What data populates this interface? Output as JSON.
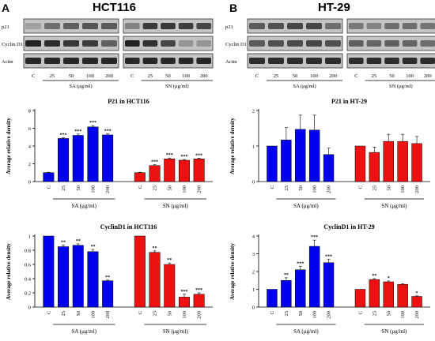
{
  "panels": {
    "A": {
      "letter": "A",
      "title": "HCT116"
    },
    "B": {
      "letter": "B",
      "title": "HT-29"
    }
  },
  "blots": {
    "rows": [
      "p21",
      "Cyclin D1",
      "Actin"
    ],
    "lanes": [
      "C",
      "25",
      "50",
      "100",
      "200",
      "C",
      "25",
      "50",
      "100",
      "200"
    ],
    "groups": [
      "SA (μg/ml)",
      "SN (μg/ml)"
    ]
  },
  "colors": {
    "SA": "#0000ee",
    "SN": "#ee1111"
  },
  "chart_data": [
    {
      "id": "p21-hct116",
      "type": "bar",
      "title": "P21 in HCT116",
      "ylabel": "Average relative density",
      "ylim": [
        0,
        8
      ],
      "yticks": [
        0,
        2,
        4,
        6,
        8
      ],
      "categories": [
        "C",
        "25",
        "50",
        "100",
        "200"
      ],
      "groups": [
        "SA (μg/ml)",
        "SN (μg/ml)"
      ],
      "series": [
        {
          "values": [
            1.0,
            4.85,
            5.2,
            6.15,
            5.25
          ],
          "errors": [
            0.05,
            0.1,
            0.15,
            0.15,
            0.15
          ],
          "annotations": [
            "",
            "***",
            "***",
            "***",
            "***"
          ]
        },
        {
          "values": [
            1.0,
            1.8,
            2.55,
            2.4,
            2.55
          ],
          "errors": [
            0.05,
            0.1,
            0.1,
            0.08,
            0.08
          ],
          "annotations": [
            "",
            "***",
            "***",
            "***",
            "***"
          ]
        }
      ]
    },
    {
      "id": "p21-ht29",
      "type": "bar",
      "title": "P21 in HT-29",
      "ylabel": "Average relative density",
      "ylim": [
        0,
        2
      ],
      "yticks": [
        0,
        1,
        2
      ],
      "categories": [
        "C",
        "25",
        "50",
        "100",
        "200"
      ],
      "groups": [
        "SA (μg/ml)",
        "SN (μg/ml)"
      ],
      "series": [
        {
          "values": [
            1.0,
            1.17,
            1.47,
            1.45,
            0.76
          ],
          "errors": [
            0.0,
            0.35,
            0.4,
            0.42,
            0.18
          ],
          "annotations": [
            "",
            "",
            "",
            "",
            ""
          ]
        },
        {
          "values": [
            1.0,
            0.82,
            1.13,
            1.13,
            1.07
          ],
          "errors": [
            0.0,
            0.15,
            0.2,
            0.2,
            0.2
          ],
          "annotations": [
            "",
            "",
            "",
            "",
            ""
          ]
        }
      ]
    },
    {
      "id": "cyclind1-hct116",
      "type": "bar",
      "title": "CyclinD1 in HCT116",
      "ylabel": "Average relative density",
      "ylim": [
        0,
        1.0
      ],
      "yticks": [
        0,
        0.2,
        0.4,
        0.6,
        0.8,
        1.0
      ],
      "categories": [
        "C",
        "25",
        "50",
        "100",
        "200"
      ],
      "groups": [
        "SA (μg/ml)",
        "SN (μg/ml)"
      ],
      "series": [
        {
          "values": [
            1.0,
            0.85,
            0.87,
            0.78,
            0.37
          ],
          "errors": [
            0.0,
            0.02,
            0.02,
            0.03,
            0.01
          ],
          "annotations": [
            "",
            "**",
            "**",
            "**",
            "**"
          ]
        },
        {
          "values": [
            1.0,
            0.77,
            0.6,
            0.14,
            0.18
          ],
          "errors": [
            0.0,
            0.02,
            0.02,
            0.04,
            0.02
          ],
          "annotations": [
            "",
            "**",
            "**",
            "***",
            "***"
          ]
        }
      ]
    },
    {
      "id": "cyclind1-ht29",
      "type": "bar",
      "title": "CyclinD1 in HT-29",
      "ylabel": "Average relative density",
      "ylim": [
        0,
        4
      ],
      "yticks": [
        0,
        1,
        2,
        3,
        4
      ],
      "categories": [
        "C",
        "25",
        "50",
        "100",
        "200"
      ],
      "groups": [
        "SA (μg/ml)",
        "SN (μg/ml)"
      ],
      "series": [
        {
          "values": [
            1.0,
            1.5,
            2.1,
            3.42,
            2.5
          ],
          "errors": [
            0.0,
            0.15,
            0.2,
            0.35,
            0.2
          ],
          "annotations": [
            "",
            "**",
            "***",
            "***",
            "***"
          ]
        },
        {
          "values": [
            1.0,
            1.55,
            1.42,
            1.28,
            0.6
          ],
          "errors": [
            0.0,
            0.05,
            0.05,
            0.03,
            0.03
          ],
          "annotations": [
            "",
            "**",
            "*",
            "",
            "*"
          ]
        }
      ]
    }
  ]
}
